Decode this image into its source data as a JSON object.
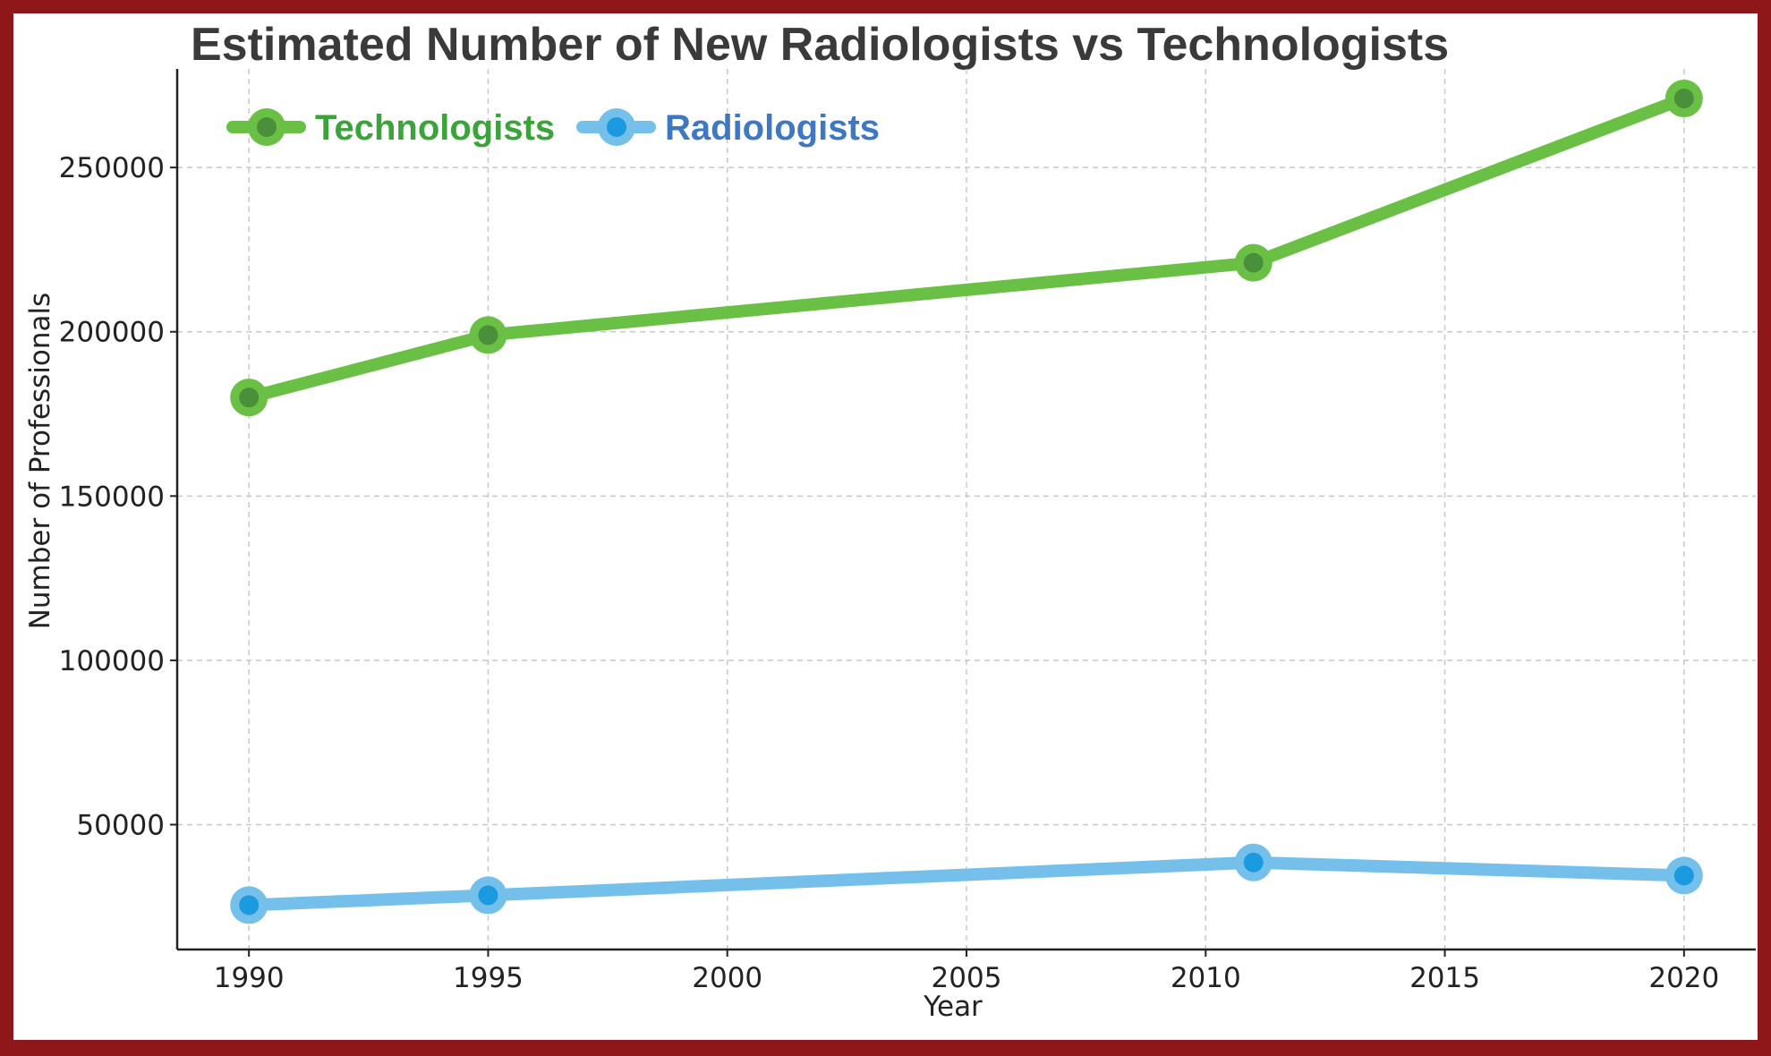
{
  "chart_data": {
    "type": "line",
    "title": "Estimated Number of New Radiologists vs Technologists",
    "xlabel": "Year",
    "ylabel": "Number of Professionals",
    "xlim": [
      1988.5,
      2021.5
    ],
    "ylim": [
      12000,
      280000
    ],
    "x_ticks": [
      1990,
      1995,
      2000,
      2005,
      2010,
      2015,
      2020
    ],
    "y_ticks": [
      50000,
      100000,
      150000,
      200000,
      250000
    ],
    "grid": true,
    "legend_position": "top-left",
    "x": [
      1990,
      1995,
      2011,
      2020
    ],
    "series": [
      {
        "name": "Technologists",
        "values": [
          180000,
          199000,
          221000,
          271000
        ],
        "line_color": "#6abf45",
        "marker_color": "#4a8f3a",
        "label_color": "#3aa33a"
      },
      {
        "name": "Radiologists",
        "values": [
          25500,
          28500,
          38500,
          34500
        ],
        "line_color": "#74c0ea",
        "marker_color": "#1c9ae0",
        "label_color": "#3f78c0"
      }
    ]
  }
}
